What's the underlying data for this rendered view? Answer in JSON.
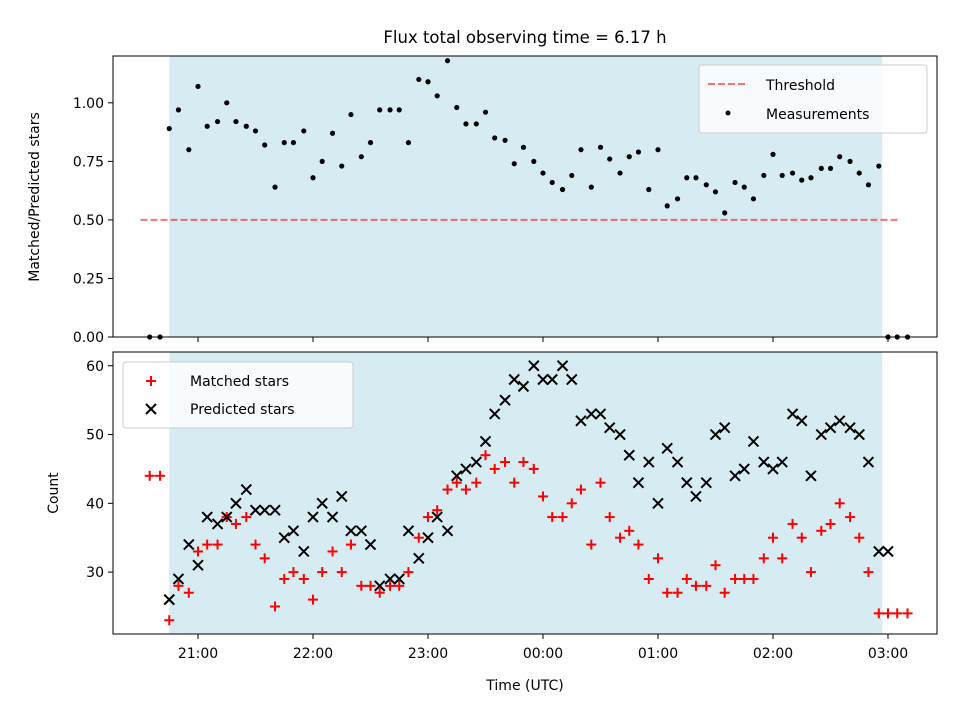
{
  "figure_title": "Flux total observing time = 6.17 h",
  "colors": {
    "shade": "#add8e6",
    "threshold": "#ff0000",
    "measurement": "#000000",
    "matched": "#ff0000",
    "predicted": "#000000"
  },
  "chart_data": [
    {
      "type": "scatter",
      "title": "Flux total observing time = 6.17 h",
      "xlabel": "",
      "ylabel": "Matched/Predicted stars",
      "x_unit": "hours since 21:00 UTC",
      "xlim": [
        -0.75,
        6.4
      ],
      "ylim": [
        0,
        1.2
      ],
      "yticks": [
        0.0,
        0.25,
        0.5,
        0.75,
        1.0
      ],
      "ytick_labels": [
        "0.00",
        "0.25",
        "0.50",
        "0.75",
        "1.00"
      ],
      "grid": false,
      "legend": {
        "position": "upper right",
        "entries": [
          "Threshold",
          "Measurements"
        ]
      },
      "shaded_span": {
        "from_time": "20:45",
        "to_time": "02:57"
      },
      "threshold": {
        "name": "Threshold",
        "y": 0.5,
        "from_time": "20:30",
        "to_time": "03:05",
        "style": "dashed"
      },
      "series": [
        {
          "name": "Measurements",
          "marker": "dot",
          "x": [
            -0.42,
            -0.33,
            -0.25,
            -0.17,
            -0.08,
            0.0,
            0.08,
            0.17,
            0.25,
            0.33,
            0.42,
            0.5,
            0.58,
            0.67,
            0.75,
            0.83,
            0.92,
            1.0,
            1.08,
            1.17,
            1.25,
            1.33,
            1.42,
            1.5,
            1.58,
            1.67,
            1.75,
            1.83,
            1.92,
            2.0,
            2.08,
            2.17,
            2.25,
            2.33,
            2.42,
            2.5,
            2.58,
            2.67,
            2.75,
            2.83,
            2.92,
            3.0,
            3.08,
            3.17,
            3.25,
            3.33,
            3.42,
            3.5,
            3.58,
            3.67,
            3.75,
            3.83,
            3.92,
            4.0,
            4.08,
            4.17,
            4.25,
            4.33,
            4.42,
            4.5,
            4.58,
            4.67,
            4.75,
            4.83,
            4.92,
            5.0,
            5.08,
            5.17,
            5.25,
            5.33,
            5.42,
            5.5,
            5.58,
            5.67,
            5.75,
            5.83,
            5.92,
            6.0,
            6.08,
            6.17
          ],
          "y": [
            0.0,
            0.0,
            0.89,
            0.97,
            0.8,
            1.07,
            0.9,
            0.92,
            1.0,
            0.92,
            0.9,
            0.88,
            0.82,
            0.64,
            0.83,
            0.83,
            0.88,
            0.68,
            0.75,
            0.87,
            0.73,
            0.95,
            0.77,
            0.83,
            0.97,
            0.97,
            0.97,
            0.83,
            1.1,
            1.09,
            1.03,
            1.18,
            0.98,
            0.91,
            0.91,
            0.96,
            0.85,
            0.84,
            0.74,
            0.81,
            0.75,
            0.7,
            0.66,
            0.63,
            0.69,
            0.8,
            0.64,
            0.81,
            0.76,
            0.7,
            0.77,
            0.79,
            0.63,
            0.8,
            0.56,
            0.59,
            0.68,
            0.68,
            0.65,
            0.62,
            0.53,
            0.66,
            0.64,
            0.59,
            0.69,
            0.78,
            0.69,
            0.7,
            0.67,
            0.68,
            0.72,
            0.72,
            0.77,
            0.75,
            0.7,
            0.65,
            0.73,
            0.0,
            0.0,
            0.0
          ]
        }
      ]
    },
    {
      "type": "scatter",
      "xlabel": "Time (UTC)",
      "ylabel": "Count",
      "x_unit": "hours since 21:00 UTC",
      "xlim": [
        -0.75,
        6.4
      ],
      "ylim": [
        21,
        62
      ],
      "yticks": [
        30,
        40,
        50,
        60
      ],
      "xticks": [
        0,
        1,
        2,
        3,
        4,
        5,
        6
      ],
      "xtick_labels": [
        "21:00",
        "22:00",
        "23:00",
        "00:00",
        "01:00",
        "02:00",
        "03:00"
      ],
      "grid": false,
      "legend": {
        "position": "upper left",
        "entries": [
          "Matched stars",
          "Predicted stars"
        ]
      },
      "shaded_span": {
        "from_time": "20:45",
        "to_time": "02:57"
      },
      "series": [
        {
          "name": "Matched stars",
          "marker": "plus",
          "x": [
            -0.42,
            -0.33,
            -0.25,
            -0.17,
            -0.08,
            0.0,
            0.08,
            0.17,
            0.25,
            0.33,
            0.42,
            0.5,
            0.58,
            0.67,
            0.75,
            0.83,
            0.92,
            1.0,
            1.08,
            1.17,
            1.25,
            1.33,
            1.42,
            1.5,
            1.58,
            1.67,
            1.75,
            1.83,
            1.92,
            2.0,
            2.08,
            2.17,
            2.25,
            2.33,
            2.42,
            2.5,
            2.58,
            2.67,
            2.75,
            2.83,
            2.92,
            3.0,
            3.08,
            3.17,
            3.25,
            3.33,
            3.42,
            3.5,
            3.58,
            3.67,
            3.75,
            3.83,
            3.92,
            4.0,
            4.08,
            4.17,
            4.25,
            4.33,
            4.42,
            4.5,
            4.58,
            4.67,
            4.75,
            4.83,
            4.92,
            5.0,
            5.08,
            5.17,
            5.25,
            5.33,
            5.42,
            5.5,
            5.58,
            5.67,
            5.75,
            5.83,
            5.92,
            6.0,
            6.08,
            6.17
          ],
          "y": [
            44,
            44,
            23,
            28,
            27,
            33,
            34,
            34,
            38,
            37,
            38,
            34,
            32,
            25,
            29,
            30,
            29,
            26,
            30,
            33,
            30,
            34,
            28,
            28,
            27,
            28,
            28,
            30,
            35,
            38,
            39,
            42,
            43,
            42,
            43,
            47,
            45,
            46,
            43,
            46,
            45,
            41,
            38,
            38,
            40,
            42,
            34,
            43,
            38,
            35,
            36,
            34,
            29,
            32,
            27,
            27,
            29,
            28,
            28,
            31,
            27,
            29,
            29,
            29,
            32,
            35,
            32,
            37,
            35,
            30,
            36,
            37,
            40,
            38,
            35,
            30,
            24,
            24,
            24,
            24
          ]
        },
        {
          "name": "Predicted stars",
          "marker": "x",
          "x": [
            -0.25,
            -0.17,
            -0.08,
            0.0,
            0.08,
            0.17,
            0.25,
            0.33,
            0.42,
            0.5,
            0.58,
            0.67,
            0.75,
            0.83,
            0.92,
            1.0,
            1.08,
            1.17,
            1.25,
            1.33,
            1.42,
            1.5,
            1.58,
            1.67,
            1.75,
            1.83,
            1.92,
            2.0,
            2.08,
            2.17,
            2.25,
            2.33,
            2.42,
            2.5,
            2.58,
            2.67,
            2.75,
            2.83,
            2.92,
            3.0,
            3.08,
            3.17,
            3.25,
            3.33,
            3.42,
            3.5,
            3.58,
            3.67,
            3.75,
            3.83,
            3.92,
            4.0,
            4.08,
            4.17,
            4.25,
            4.33,
            4.42,
            4.5,
            4.58,
            4.67,
            4.75,
            4.83,
            4.92,
            5.0,
            5.08,
            5.17,
            5.25,
            5.33,
            5.42,
            5.5,
            5.58,
            5.67,
            5.75,
            5.83,
            5.92,
            6.0
          ],
          "y": [
            26,
            29,
            34,
            31,
            38,
            37,
            38,
            40,
            42,
            39,
            39,
            39,
            35,
            36,
            33,
            38,
            40,
            38,
            41,
            36,
            36,
            34,
            28,
            29,
            29,
            36,
            32,
            35,
            38,
            36,
            44,
            45,
            46,
            49,
            53,
            55,
            58,
            57,
            60,
            58,
            58,
            60,
            58,
            52,
            53,
            53,
            51,
            50,
            47,
            43,
            46,
            40,
            48,
            46,
            43,
            41,
            43,
            50,
            51,
            44,
            45,
            49,
            46,
            45,
            46,
            53,
            52,
            44,
            50,
            51,
            52,
            51,
            50,
            46,
            33,
            33
          ]
        }
      ]
    }
  ]
}
